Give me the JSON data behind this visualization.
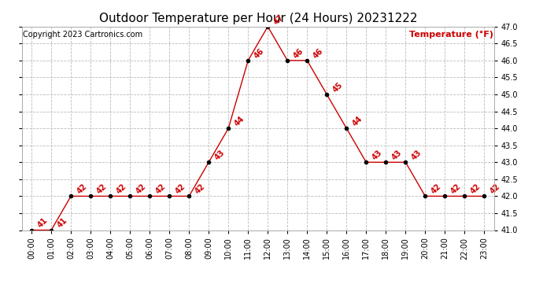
{
  "title": "Outdoor Temperature per Hour (24 Hours) 20231222",
  "copyright_text": "Copyright 2023 Cartronics.com",
  "legend_label": "Temperature (°F)",
  "hours": [
    0,
    1,
    2,
    3,
    4,
    5,
    6,
    7,
    8,
    9,
    10,
    11,
    12,
    13,
    14,
    15,
    16,
    17,
    18,
    19,
    20,
    21,
    22,
    23
  ],
  "temps": [
    41,
    41,
    42,
    42,
    42,
    42,
    42,
    42,
    42,
    43,
    44,
    46,
    47,
    46,
    46,
    45,
    44,
    43,
    43,
    43,
    42,
    42,
    42,
    42
  ],
  "hour_labels": [
    "00:00",
    "01:00",
    "02:00",
    "03:00",
    "04:00",
    "05:00",
    "06:00",
    "07:00",
    "08:00",
    "09:00",
    "10:00",
    "11:00",
    "12:00",
    "13:00",
    "14:00",
    "15:00",
    "16:00",
    "17:00",
    "18:00",
    "19:00",
    "20:00",
    "21:00",
    "22:00",
    "23:00"
  ],
  "ylim": [
    41.0,
    47.0
  ],
  "ytick_step": 0.5,
  "line_color": "#cc0000",
  "marker_color": "#000000",
  "label_color": "#cc0000",
  "grid_color": "#bbbbbb",
  "background_color": "#ffffff",
  "title_fontsize": 11,
  "copyright_fontsize": 7,
  "legend_fontsize": 8,
  "annotation_fontsize": 7,
  "tick_fontsize": 7
}
